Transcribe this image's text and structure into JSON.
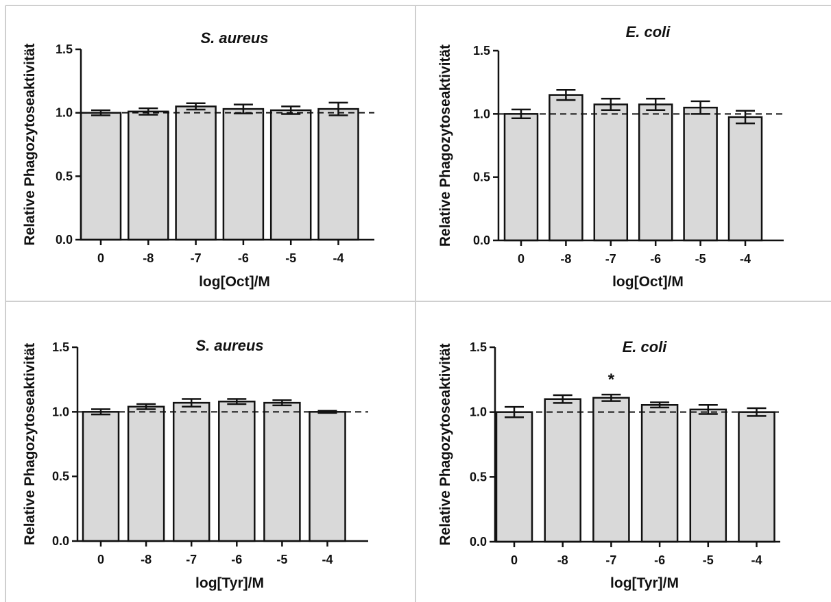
{
  "colors": {
    "bar_fill": "#d9d9d9",
    "stroke": "#111111",
    "divider": "#cfcfcf"
  },
  "chart_data": [
    {
      "type": "bar",
      "title": "S. aureus",
      "xlabel": "log[Oct]/M",
      "ylabel": "Relative Phagozytoseaktivität",
      "categories": [
        "0",
        "-8",
        "-7",
        "-6",
        "-5",
        "-4"
      ],
      "values": [
        1.0,
        1.01,
        1.05,
        1.03,
        1.02,
        1.03
      ],
      "errors": [
        0.02,
        0.025,
        0.025,
        0.035,
        0.03,
        0.05
      ],
      "ylim": [
        0,
        1.5
      ],
      "yticks": [
        "0.0",
        "0.5",
        "1.0",
        "1.5"
      ],
      "reference_line": 1.0,
      "annotations": []
    },
    {
      "type": "bar",
      "title": "E. coli",
      "xlabel": "log[Oct]/M",
      "ylabel": "Relative Phagozytoseaktivität",
      "categories": [
        "0",
        "-8",
        "-7",
        "-6",
        "-5",
        "-4"
      ],
      "values": [
        1.0,
        1.15,
        1.075,
        1.075,
        1.05,
        0.975
      ],
      "errors": [
        0.035,
        0.04,
        0.045,
        0.045,
        0.05,
        0.05
      ],
      "ylim": [
        0,
        1.5
      ],
      "yticks": [
        "0.0",
        "0.5",
        "1.0",
        "1.5"
      ],
      "reference_line": 1.0,
      "annotations": []
    },
    {
      "type": "bar",
      "title": "S. aureus",
      "xlabel": "log[Tyr]/M",
      "ylabel": "Relative Phagozytoseaktivität",
      "categories": [
        "0",
        "-8",
        "-7",
        "-6",
        "-5",
        "-4"
      ],
      "values": [
        1.0,
        1.04,
        1.07,
        1.08,
        1.07,
        1.0
      ],
      "errors": [
        0.02,
        0.02,
        0.03,
        0.02,
        0.02,
        0.008
      ],
      "ylim": [
        0,
        1.5
      ],
      "yticks": [
        "0.0",
        "0.5",
        "1.0",
        "1.5"
      ],
      "reference_line": 1.0,
      "annotations": []
    },
    {
      "type": "bar",
      "title": "E. coli",
      "xlabel": "log[Tyr]/M",
      "ylabel": "Relative Phagozytoseaktivität",
      "categories": [
        "0",
        "-8",
        "-7",
        "-6",
        "-5",
        "-4"
      ],
      "values": [
        1.0,
        1.1,
        1.11,
        1.055,
        1.02,
        1.0
      ],
      "errors": [
        0.04,
        0.03,
        0.025,
        0.02,
        0.035,
        0.03
      ],
      "ylim": [
        0,
        1.5
      ],
      "yticks": [
        "0.0",
        "0.5",
        "1.0",
        "1.5"
      ],
      "reference_line": 1.0,
      "annotations": [
        {
          "category": "-7",
          "text": "*"
        }
      ]
    }
  ]
}
